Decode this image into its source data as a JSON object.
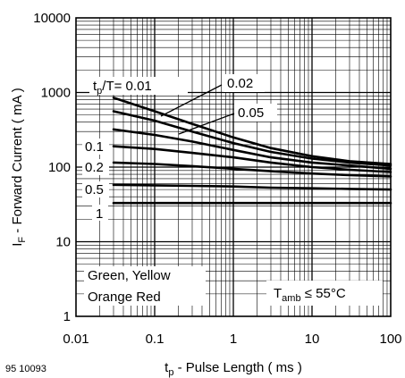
{
  "chart_data": {
    "type": "line",
    "scale": {
      "x": "log",
      "y": "log"
    },
    "xlim": [
      0.01,
      100
    ],
    "ylim": [
      1,
      10000
    ],
    "grid": true,
    "x_ticks": [
      "0.01",
      "0.1",
      "1",
      "10",
      "100"
    ],
    "y_ticks": [
      "1",
      "10",
      "100",
      "1000",
      "10000"
    ],
    "xlabel": {
      "main": "t",
      "sub": "p",
      "rest": " - Pulse Length ( ms )"
    },
    "ylabel": {
      "main": "I",
      "sub": "F",
      "rest": " - Forward Current ( mA )"
    },
    "series": [
      {
        "name": "0.01",
        "x": [
          0.03,
          0.1,
          0.3,
          1,
          3,
          10,
          30,
          100
        ],
        "y": [
          850,
          560,
          380,
          250,
          180,
          140,
          120,
          110
        ]
      },
      {
        "name": "0.02",
        "x": [
          0.03,
          0.1,
          0.3,
          1,
          3,
          10,
          30,
          100
        ],
        "y": [
          560,
          420,
          300,
          210,
          160,
          130,
          115,
          105
        ]
      },
      {
        "name": "0.05",
        "x": [
          0.03,
          0.1,
          0.3,
          1,
          3,
          10,
          30,
          100
        ],
        "y": [
          320,
          270,
          220,
          170,
          135,
          115,
          105,
          95
        ]
      },
      {
        "name": "0.1",
        "x": [
          0.03,
          0.1,
          0.3,
          1,
          3,
          10,
          30,
          100
        ],
        "y": [
          190,
          175,
          155,
          135,
          115,
          100,
          92,
          86
        ]
      },
      {
        "name": "0.2",
        "x": [
          0.03,
          0.1,
          0.3,
          1,
          3,
          10,
          30,
          100
        ],
        "y": [
          115,
          110,
          103,
          95,
          88,
          82,
          78,
          75
        ]
      },
      {
        "name": "0.5",
        "x": [
          0.03,
          0.1,
          0.3,
          1,
          3,
          10,
          30,
          100
        ],
        "y": [
          58,
          57,
          56,
          55,
          53,
          52,
          51,
          50
        ]
      },
      {
        "name": "1",
        "x": [
          0.03,
          0.1,
          0.3,
          1,
          3,
          10,
          30,
          100
        ],
        "y": [
          33,
          33,
          33,
          33,
          33,
          33,
          33,
          33
        ]
      }
    ],
    "annotations": {
      "tp_ratio": {
        "main": "t",
        "sub": "p",
        "rest": "/T= 0.01"
      },
      "duty_labels": [
        "0.02",
        "0.05",
        "0.1",
        "0.2",
        "0.5",
        "1"
      ],
      "legend_lines": [
        "Green, Yellow",
        "Orange Red"
      ],
      "tamb": {
        "main": "T",
        "sub": "amb",
        "rest": " ≤ 55°C"
      }
    },
    "figure_id": "95 10093"
  }
}
